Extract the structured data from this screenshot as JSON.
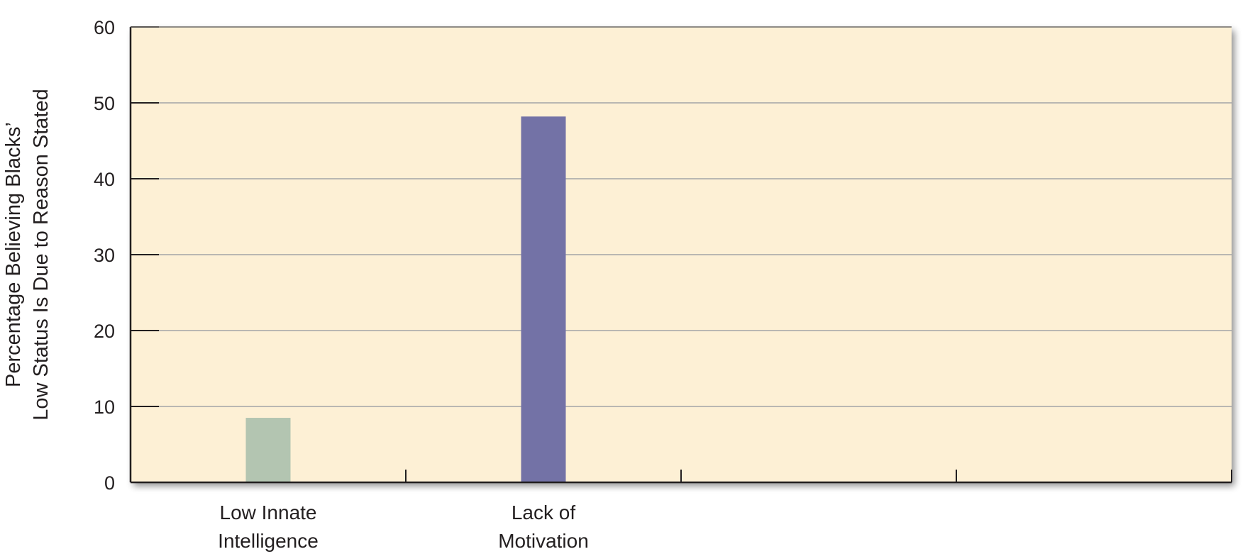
{
  "chart_data": {
    "type": "bar",
    "title": "",
    "xlabel": "",
    "ylabel_lines": [
      "Percentage Believing Blacks’",
      "Low Status Is Due to Reason Stated"
    ],
    "ylim": [
      0,
      60
    ],
    "yticks": [
      0,
      10,
      20,
      30,
      40,
      50,
      60
    ],
    "grid": true,
    "categories": [
      {
        "lines": [
          "Low Innate",
          "Intelligence"
        ],
        "value": 8.5,
        "color": "#b3c5b1"
      },
      {
        "lines": [
          "Lack of",
          "Motivation"
        ],
        "value": 48.2,
        "color": "#7372a6"
      },
      {
        "lines": [],
        "value": null,
        "color": ""
      },
      {
        "lines": [],
        "value": null,
        "color": ""
      }
    ],
    "colors": {
      "plot_background": "#fdf0d5",
      "gridline": "#b9b7b2",
      "axis": "#231f20"
    }
  }
}
